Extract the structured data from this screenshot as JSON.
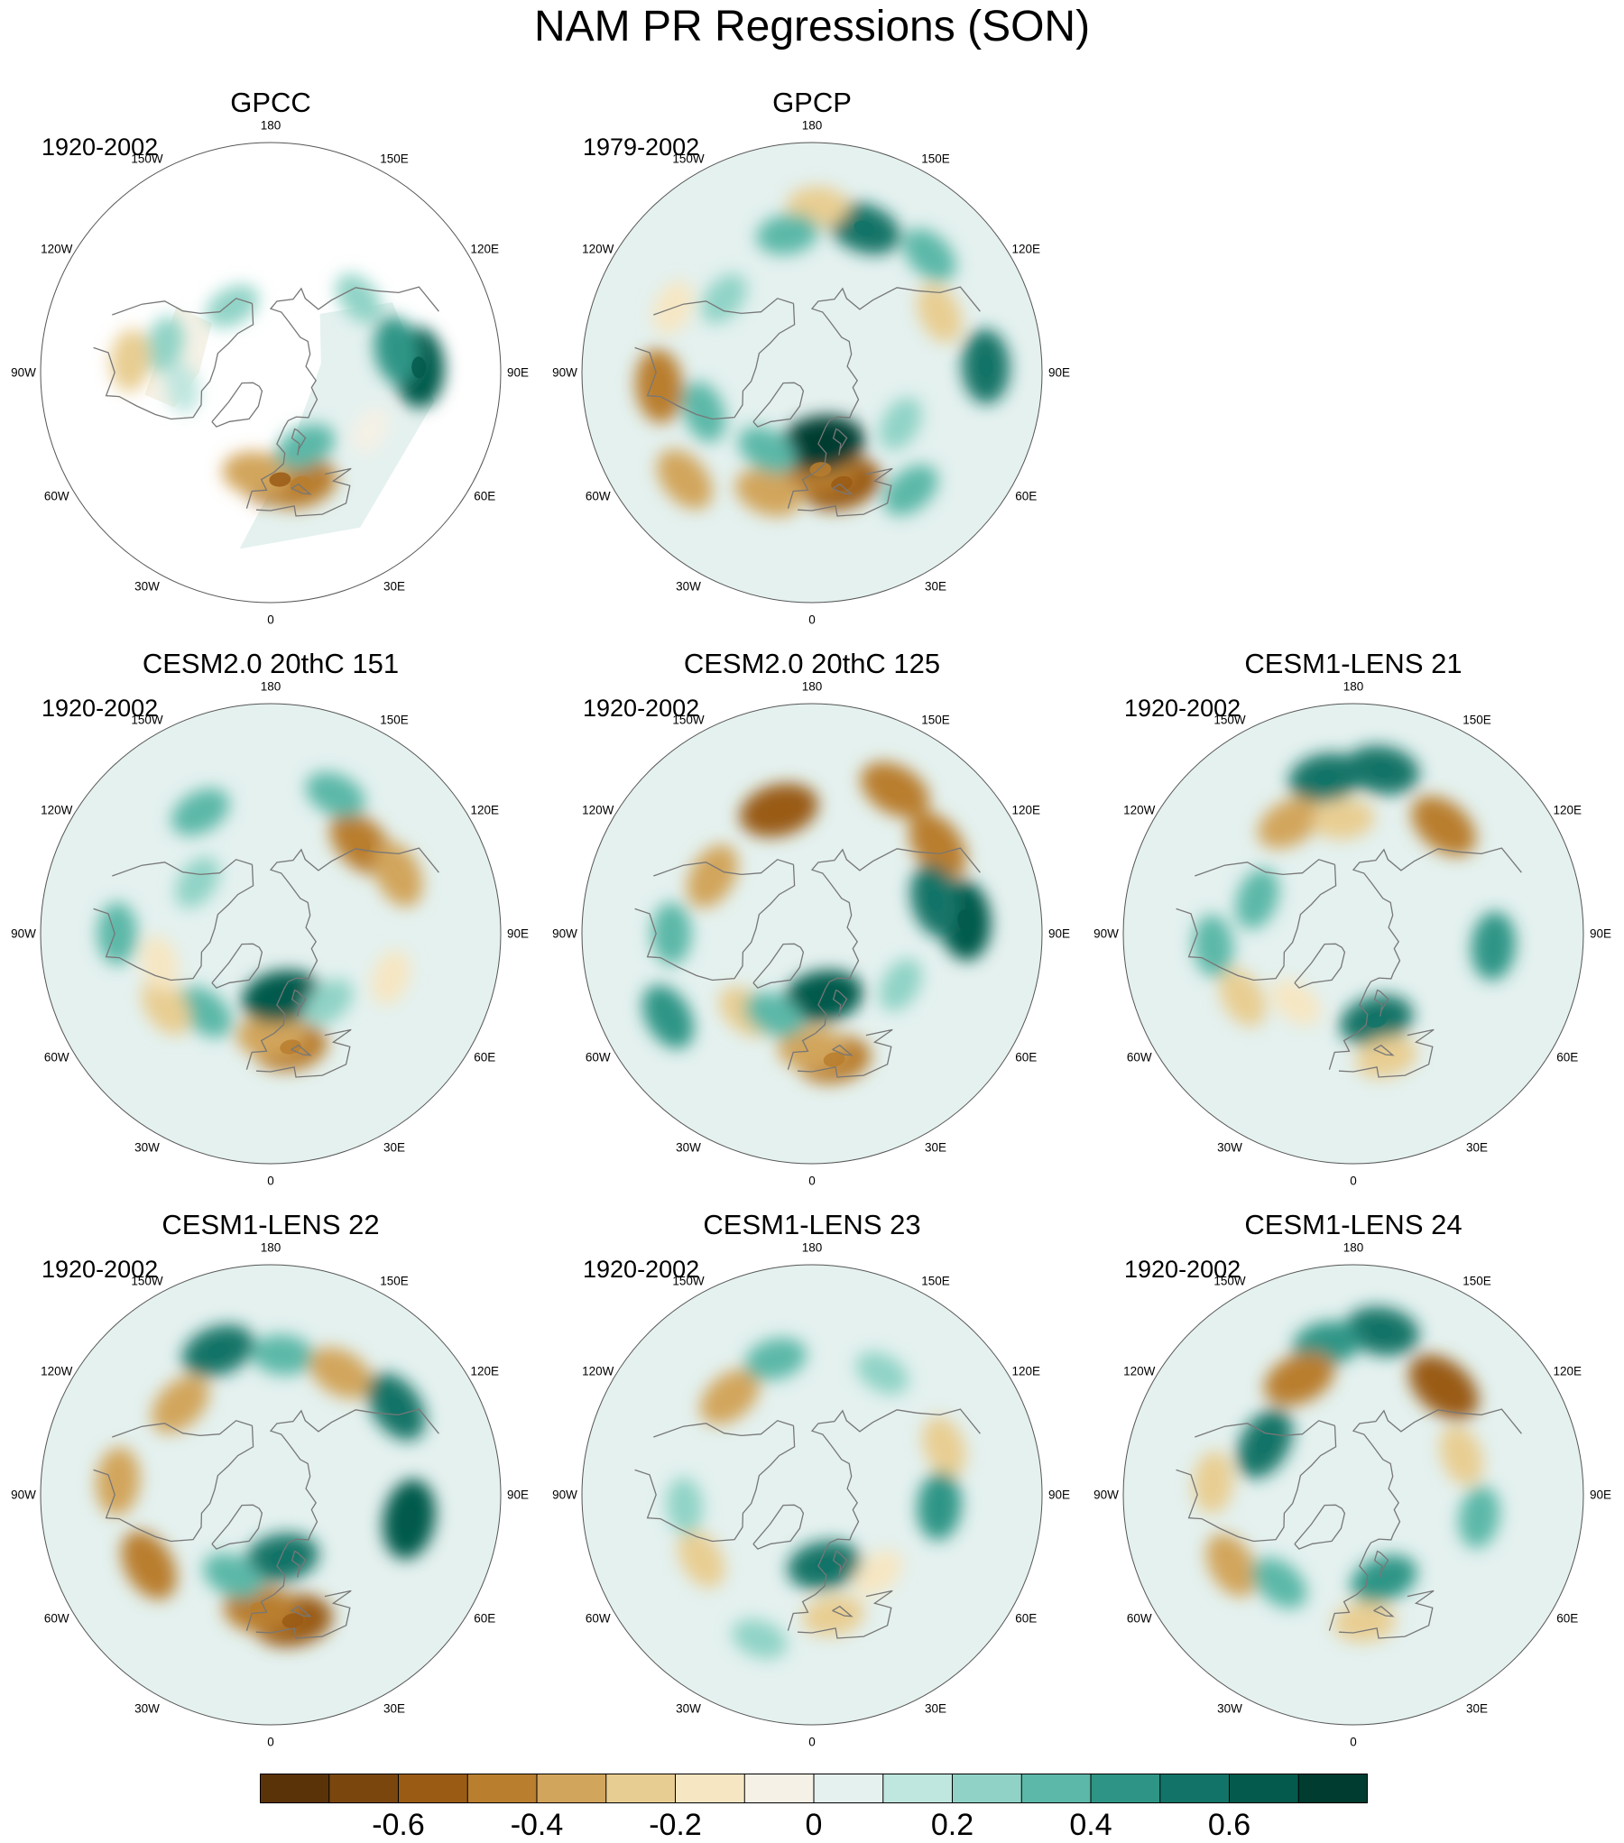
{
  "title": "NAM PR Regressions (SON)",
  "longitude_labels": [
    "180",
    "150E",
    "120E",
    "90E",
    "60E",
    "30E",
    "0",
    "30W",
    "60W",
    "90W",
    "120W",
    "150W"
  ],
  "panels": [
    {
      "name": "GPCC",
      "period": "1920-2002",
      "missing_land_mask": true,
      "anomalies": [
        {
          "lon": 5,
          "lat": 48,
          "value": -0.6
        },
        {
          "lon": 15,
          "lat": 45,
          "value": -0.5
        },
        {
          "lon": -8,
          "lat": 50,
          "value": -0.4
        },
        {
          "lon": 25,
          "lat": 58,
          "value": 0.3
        },
        {
          "lon": 92,
          "lat": 32,
          "value": 0.6
        },
        {
          "lon": 100,
          "lat": 40,
          "value": 0.4
        },
        {
          "lon": 60,
          "lat": 45,
          "value": -0.1
        },
        {
          "lon": -105,
          "lat": 47,
          "value": 0.2
        },
        {
          "lon": -80,
          "lat": 55,
          "value": 0.1
        },
        {
          "lon": -95,
          "lat": 35,
          "value": -0.3
        },
        {
          "lon": 130,
          "lat": 45,
          "value": 0.2
        },
        {
          "lon": -150,
          "lat": 60,
          "value": 0.2
        }
      ]
    },
    {
      "name": "GPCP",
      "period": "1979-2002",
      "missing_land_mask": false,
      "anomalies": [
        {
          "lon": 15,
          "lat": 45,
          "value": -0.6
        },
        {
          "lon": 5,
          "lat": 52,
          "value": -0.5
        },
        {
          "lon": 8,
          "lat": 62,
          "value": 0.7
        },
        {
          "lon": -20,
          "lat": 40,
          "value": -0.4
        },
        {
          "lon": -50,
          "lat": 25,
          "value": -0.4
        },
        {
          "lon": -85,
          "lat": 30,
          "value": -0.5
        },
        {
          "lon": -70,
          "lat": 45,
          "value": 0.3
        },
        {
          "lon": -30,
          "lat": 55,
          "value": 0.3
        },
        {
          "lon": 160,
          "lat": 30,
          "value": 0.5
        },
        {
          "lon": 135,
          "lat": 25,
          "value": 0.3
        },
        {
          "lon": 115,
          "lat": 35,
          "value": -0.3
        },
        {
          "lon": 92,
          "lat": 22,
          "value": 0.5
        },
        {
          "lon": 178,
          "lat": 25,
          "value": -0.3
        },
        {
          "lon": 60,
          "lat": 50,
          "value": 0.2
        },
        {
          "lon": -130,
          "lat": 45,
          "value": 0.2
        },
        {
          "lon": -170,
          "lat": 35,
          "value": 0.3
        },
        {
          "lon": 40,
          "lat": 30,
          "value": 0.3
        },
        {
          "lon": -115,
          "lat": 30,
          "value": -0.2
        }
      ]
    },
    {
      "name": "CESM2.0 20thC 151",
      "period": "1920-2002",
      "missing_land_mask": false,
      "anomalies": [
        {
          "lon": 10,
          "lat": 45,
          "value": -0.5
        },
        {
          "lon": 0,
          "lat": 50,
          "value": -0.4
        },
        {
          "lon": 10,
          "lat": 65,
          "value": 0.6
        },
        {
          "lon": 135,
          "lat": 40,
          "value": -0.5
        },
        {
          "lon": 115,
          "lat": 35,
          "value": -0.4
        },
        {
          "lon": 155,
          "lat": 30,
          "value": 0.3
        },
        {
          "lon": -150,
          "lat": 35,
          "value": 0.3
        },
        {
          "lon": -40,
          "lat": 50,
          "value": 0.3
        },
        {
          "lon": -55,
          "lat": 40,
          "value": -0.3
        },
        {
          "lon": -90,
          "lat": 30,
          "value": 0.3
        },
        {
          "lon": -75,
          "lat": 45,
          "value": -0.2
        },
        {
          "lon": 70,
          "lat": 40,
          "value": -0.2
        },
        {
          "lon": 40,
          "lat": 55,
          "value": 0.2
        },
        {
          "lon": -125,
          "lat": 55,
          "value": 0.2
        }
      ]
    },
    {
      "name": "CESM2.0 20thC 125",
      "period": "1920-2002",
      "missing_land_mask": false,
      "anomalies": [
        {
          "lon": 10,
          "lat": 40,
          "value": -0.5
        },
        {
          "lon": 0,
          "lat": 45,
          "value": -0.4
        },
        {
          "lon": 10,
          "lat": 65,
          "value": 0.6
        },
        {
          "lon": -165,
          "lat": 40,
          "value": -0.6
        },
        {
          "lon": 150,
          "lat": 25,
          "value": -0.5
        },
        {
          "lon": 125,
          "lat": 30,
          "value": -0.5
        },
        {
          "lon": 95,
          "lat": 30,
          "value": 0.6
        },
        {
          "lon": 105,
          "lat": 40,
          "value": 0.5
        },
        {
          "lon": -60,
          "lat": 25,
          "value": 0.4
        },
        {
          "lon": -90,
          "lat": 35,
          "value": 0.3
        },
        {
          "lon": -40,
          "lat": 50,
          "value": -0.3
        },
        {
          "lon": -120,
          "lat": 45,
          "value": -0.4
        },
        {
          "lon": -25,
          "lat": 55,
          "value": 0.3
        },
        {
          "lon": 60,
          "lat": 50,
          "value": 0.2
        }
      ]
    },
    {
      "name": "CESM1-LENS 21",
      "period": "1920-2002",
      "missing_land_mask": false,
      "anomalies": [
        {
          "lon": 170,
          "lat": 25,
          "value": 0.5
        },
        {
          "lon": -170,
          "lat": 28,
          "value": 0.5
        },
        {
          "lon": 140,
          "lat": 35,
          "value": -0.5
        },
        {
          "lon": -150,
          "lat": 40,
          "value": -0.4
        },
        {
          "lon": -175,
          "lat": 45,
          "value": -0.3
        },
        {
          "lon": 15,
          "lat": 55,
          "value": 0.5
        },
        {
          "lon": 15,
          "lat": 40,
          "value": -0.3
        },
        {
          "lon": -60,
          "lat": 40,
          "value": -0.3
        },
        {
          "lon": -85,
          "lat": 35,
          "value": 0.3
        },
        {
          "lon": 85,
          "lat": 35,
          "value": 0.4
        },
        {
          "lon": -110,
          "lat": 50,
          "value": 0.3
        },
        {
          "lon": -40,
          "lat": 55,
          "value": -0.2
        }
      ]
    },
    {
      "name": "CESM1-LENS 22",
      "period": "1920-2002",
      "missing_land_mask": false,
      "anomalies": [
        {
          "lon": 10,
          "lat": 40,
          "value": -0.6
        },
        {
          "lon": -5,
          "lat": 45,
          "value": -0.5
        },
        {
          "lon": -160,
          "lat": 30,
          "value": 0.5
        },
        {
          "lon": 175,
          "lat": 35,
          "value": 0.3
        },
        {
          "lon": -135,
          "lat": 40,
          "value": -0.4
        },
        {
          "lon": 150,
          "lat": 35,
          "value": -0.4
        },
        {
          "lon": 125,
          "lat": 30,
          "value": 0.5
        },
        {
          "lon": 10,
          "lat": 65,
          "value": 0.5
        },
        {
          "lon": -60,
          "lat": 35,
          "value": -0.5
        },
        {
          "lon": -95,
          "lat": 30,
          "value": -0.4
        },
        {
          "lon": 80,
          "lat": 35,
          "value": 0.6
        },
        {
          "lon": -25,
          "lat": 55,
          "value": 0.3
        }
      ]
    },
    {
      "name": "CESM1-LENS 23",
      "period": "1920-2002",
      "missing_land_mask": false,
      "anomalies": [
        {
          "lon": 10,
          "lat": 42,
          "value": -0.3
        },
        {
          "lon": 10,
          "lat": 62,
          "value": 0.5
        },
        {
          "lon": -140,
          "lat": 40,
          "value": -0.4
        },
        {
          "lon": -165,
          "lat": 35,
          "value": 0.3
        },
        {
          "lon": 110,
          "lat": 35,
          "value": -0.3
        },
        {
          "lon": 85,
          "lat": 40,
          "value": 0.4
        },
        {
          "lon": -60,
          "lat": 40,
          "value": -0.3
        },
        {
          "lon": -85,
          "lat": 40,
          "value": 0.2
        },
        {
          "lon": -20,
          "lat": 30,
          "value": 0.2
        },
        {
          "lon": 40,
          "lat": 50,
          "value": -0.2
        },
        {
          "lon": 150,
          "lat": 35,
          "value": 0.2
        }
      ]
    },
    {
      "name": "CESM1-LENS 24",
      "period": "1920-2002",
      "missing_land_mask": false,
      "anomalies": [
        {
          "lon": 170,
          "lat": 25,
          "value": 0.5
        },
        {
          "lon": -170,
          "lat": 30,
          "value": 0.4
        },
        {
          "lon": 140,
          "lat": 35,
          "value": -0.6
        },
        {
          "lon": -155,
          "lat": 40,
          "value": -0.5
        },
        {
          "lon": 20,
          "lat": 55,
          "value": 0.4
        },
        {
          "lon": 5,
          "lat": 40,
          "value": -0.3
        },
        {
          "lon": -60,
          "lat": 35,
          "value": -0.4
        },
        {
          "lon": -95,
          "lat": 35,
          "value": -0.3
        },
        {
          "lon": -120,
          "lat": 50,
          "value": 0.5
        },
        {
          "lon": -40,
          "lat": 45,
          "value": 0.3
        },
        {
          "lon": 110,
          "lat": 45,
          "value": -0.3
        },
        {
          "lon": 80,
          "lat": 40,
          "value": 0.3
        }
      ]
    }
  ],
  "colorbar": {
    "colors": [
      "#5b3309",
      "#7a460e",
      "#9a5b15",
      "#b97e2e",
      "#d2a55c",
      "#e8cd92",
      "#f6e6c2",
      "#f5f1e6",
      "#e4f1ef",
      "#bfe6df",
      "#90d3c6",
      "#5cb8a8",
      "#2e9586",
      "#127468",
      "#045a4c",
      "#003c30"
    ],
    "tick_labels": [
      "-0.6",
      "-0.4",
      "-0.2",
      "0",
      "0.2",
      "0.4",
      "0.6"
    ],
    "tick_values": [
      -0.6,
      -0.4,
      -0.2,
      0,
      0.2,
      0.4,
      0.6
    ],
    "levels": [
      -0.7,
      -0.6,
      -0.5,
      -0.4,
      -0.3,
      -0.2,
      -0.1,
      0,
      0.1,
      0.2,
      0.3,
      0.4,
      0.5,
      0.6,
      0.7
    ]
  }
}
